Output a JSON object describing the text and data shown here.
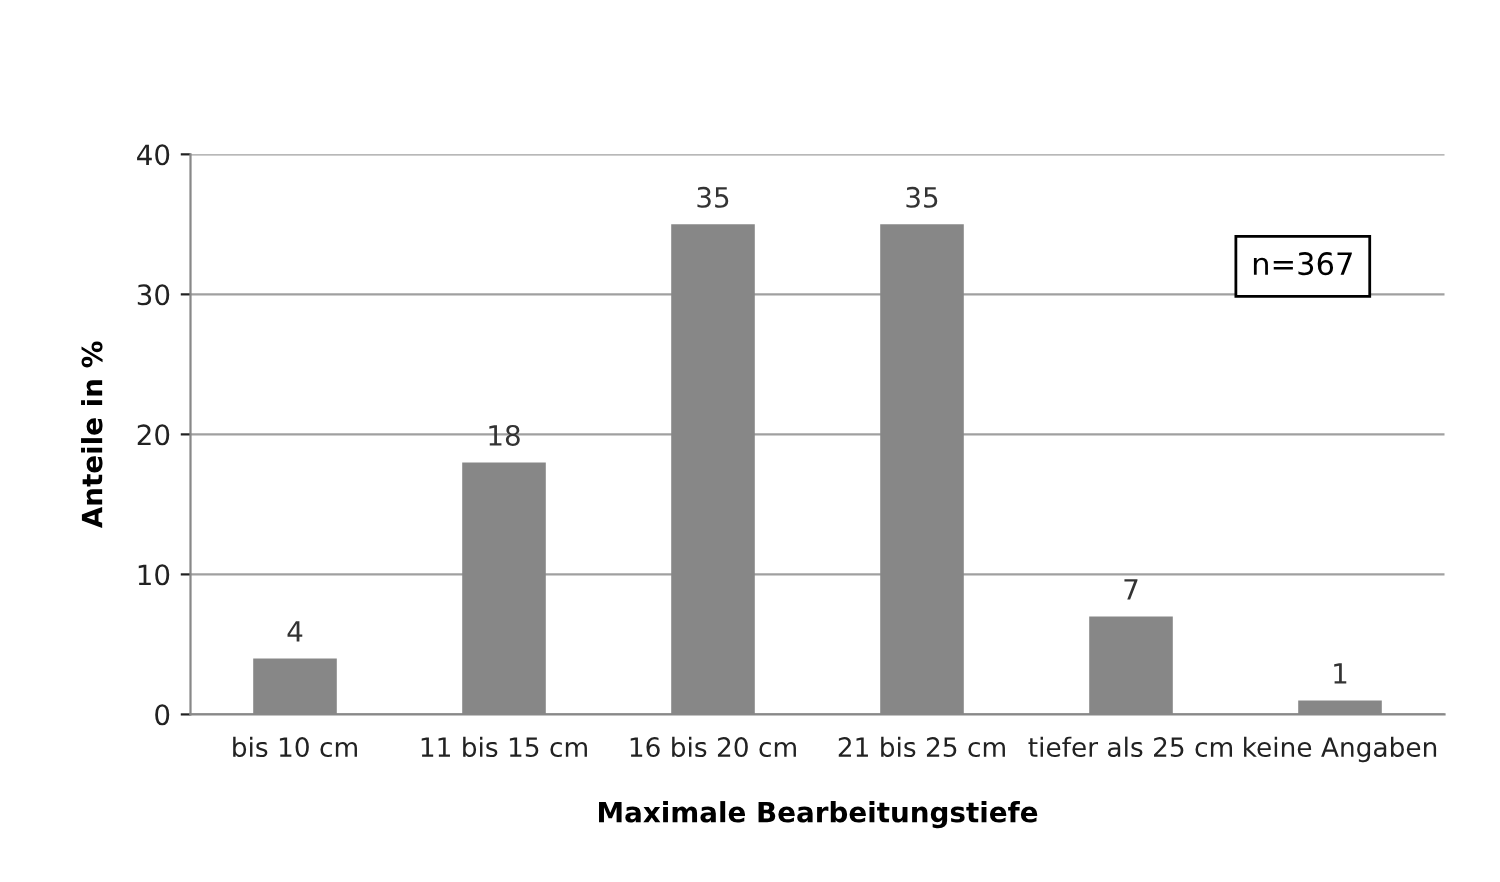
{
  "chart_data": {
    "type": "bar",
    "categories": [
      "bis 10 cm",
      "11 bis 15 cm",
      "16 bis 20 cm",
      "21 bis 25 cm",
      "tiefer als 25 cm",
      "keine Angaben"
    ],
    "values": [
      4,
      18,
      35,
      35,
      7,
      1
    ],
    "color": "#878787",
    "xlabel": "Maximale Bearbeitungstiefe",
    "ylabel": "Anteile in %",
    "ylim": [
      0,
      40
    ],
    "yticks": [
      0,
      10,
      20,
      30,
      40
    ],
    "grid": "y",
    "data_labels": true,
    "legend": false,
    "annotations": [
      "n=367"
    ]
  }
}
